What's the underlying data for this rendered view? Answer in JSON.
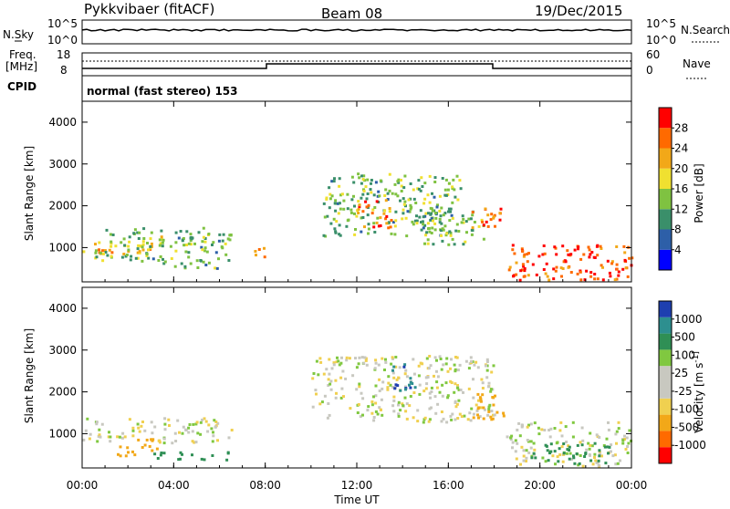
{
  "header": {
    "station": "Pykkvibaer (fitACF)",
    "beam": "Beam 08",
    "date": "19/Dec/2015"
  },
  "top_panels": {
    "nsky_label": "N.Sky",
    "nsky_ticks": [
      "10^5",
      "10^0"
    ],
    "nsearch_label": "N.Search",
    "nsearch_ticks": [
      "10^5",
      "10^0"
    ],
    "freq_label_1": "Freq.",
    "freq_label_2": "[MHz]",
    "freq_ticks": [
      "18",
      "8"
    ],
    "nave_label": "Nave",
    "nave_ticks": [
      "60",
      "0"
    ],
    "cpid_label": "CPID",
    "cpid_text": "normal (fast stereo) 153"
  },
  "colors": {
    "power": [
      "#0000ff",
      "#2d5fa8",
      "#3a8f6a",
      "#7fc241",
      "#f0e030",
      "#f2a818",
      "#ff6a00",
      "#ff0000"
    ],
    "velocity": [
      "#ff0000",
      "#ff6a00",
      "#f2a818",
      "#f0d050",
      "#c8c8c0",
      "#c8c8c0",
      "#80c840",
      "#2f8f55",
      "#2d8f8f",
      "#1e3fb0"
    ]
  },
  "chart_data": [
    {
      "type": "heatmap",
      "name": "power",
      "xlabel": "",
      "ylabel": "Slant Range [km]",
      "x_range": [
        "00:00",
        "24:00"
      ],
      "ylim": [
        180,
        4500
      ],
      "x_ticks": [
        "00:00",
        "04:00",
        "08:00",
        "12:00",
        "16:00",
        "20:00",
        "00:00"
      ],
      "y_ticks": [
        1000,
        2000,
        3000,
        4000
      ],
      "colorbar": {
        "label": "Power [dB]",
        "ticks": [
          "4",
          "8",
          "12",
          "16",
          "20",
          "24",
          "28"
        ],
        "range": [
          0,
          30
        ]
      },
      "regions": [
        {
          "t0": 0.0,
          "t1": 3.0,
          "r0": 850,
          "r1": 1150,
          "level": 20
        },
        {
          "t0": 0.5,
          "t1": 6.5,
          "r0": 700,
          "r1": 1500,
          "level": 12
        },
        {
          "t0": 2.5,
          "t1": 3.5,
          "r0": 1000,
          "r1": 1300,
          "level": 16
        },
        {
          "t0": 3.5,
          "t1": 6.0,
          "r0": 500,
          "r1": 700,
          "level": 12
        },
        {
          "t0": 7.5,
          "t1": 8.0,
          "r0": 800,
          "r1": 1200,
          "level": 24
        },
        {
          "t0": 10.5,
          "t1": 16.5,
          "r0": 1300,
          "r1": 2800,
          "level": 12
        },
        {
          "t0": 12.0,
          "t1": 13.5,
          "r0": 1500,
          "r1": 2200,
          "level": 24
        },
        {
          "t0": 14.5,
          "t1": 17.5,
          "r0": 1100,
          "r1": 1900,
          "level": 12
        },
        {
          "t0": 17.0,
          "t1": 18.5,
          "r0": 1500,
          "r1": 2000,
          "level": 24
        },
        {
          "t0": 18.5,
          "t1": 24.0,
          "r0": 250,
          "r1": 1100,
          "level": 26
        }
      ]
    },
    {
      "type": "heatmap",
      "name": "velocity",
      "xlabel": "Time UT",
      "ylabel": "Slant Range [km]",
      "x_range": [
        "00:00",
        "24:00"
      ],
      "ylim": [
        180,
        4500
      ],
      "x_ticks": [
        "00:00",
        "04:00",
        "08:00",
        "12:00",
        "16:00",
        "20:00",
        "00:00"
      ],
      "y_ticks": [
        1000,
        2000,
        3000,
        4000
      ],
      "colorbar": {
        "label": "Velocity [m s^-1]",
        "ticks": [
          "1000",
          "500",
          "100",
          "25",
          "-25",
          "-100",
          "-500",
          "-1000"
        ]
      },
      "regions": [
        {
          "t0": 0.0,
          "t1": 6.5,
          "r0": 800,
          "r1": 1400,
          "vel": 0
        },
        {
          "t0": 1.5,
          "t1": 3.5,
          "r0": 500,
          "r1": 900,
          "vel": -300
        },
        {
          "t0": 3.0,
          "t1": 6.5,
          "r0": 400,
          "r1": 600,
          "vel": 200
        },
        {
          "t0": 10.0,
          "t1": 18.0,
          "r0": 1300,
          "r1": 2900,
          "vel": 0
        },
        {
          "t0": 13.5,
          "t1": 14.5,
          "r0": 2000,
          "r1": 2700,
          "vel": 1000
        },
        {
          "t0": 17.0,
          "t1": 18.5,
          "r0": 1300,
          "r1": 2000,
          "vel": -200
        },
        {
          "t0": 18.5,
          "t1": 24.0,
          "r0": 250,
          "r1": 1300,
          "vel": 0
        },
        {
          "t0": 19.5,
          "t1": 23.0,
          "r0": 300,
          "r1": 800,
          "vel": 300
        }
      ]
    }
  ]
}
